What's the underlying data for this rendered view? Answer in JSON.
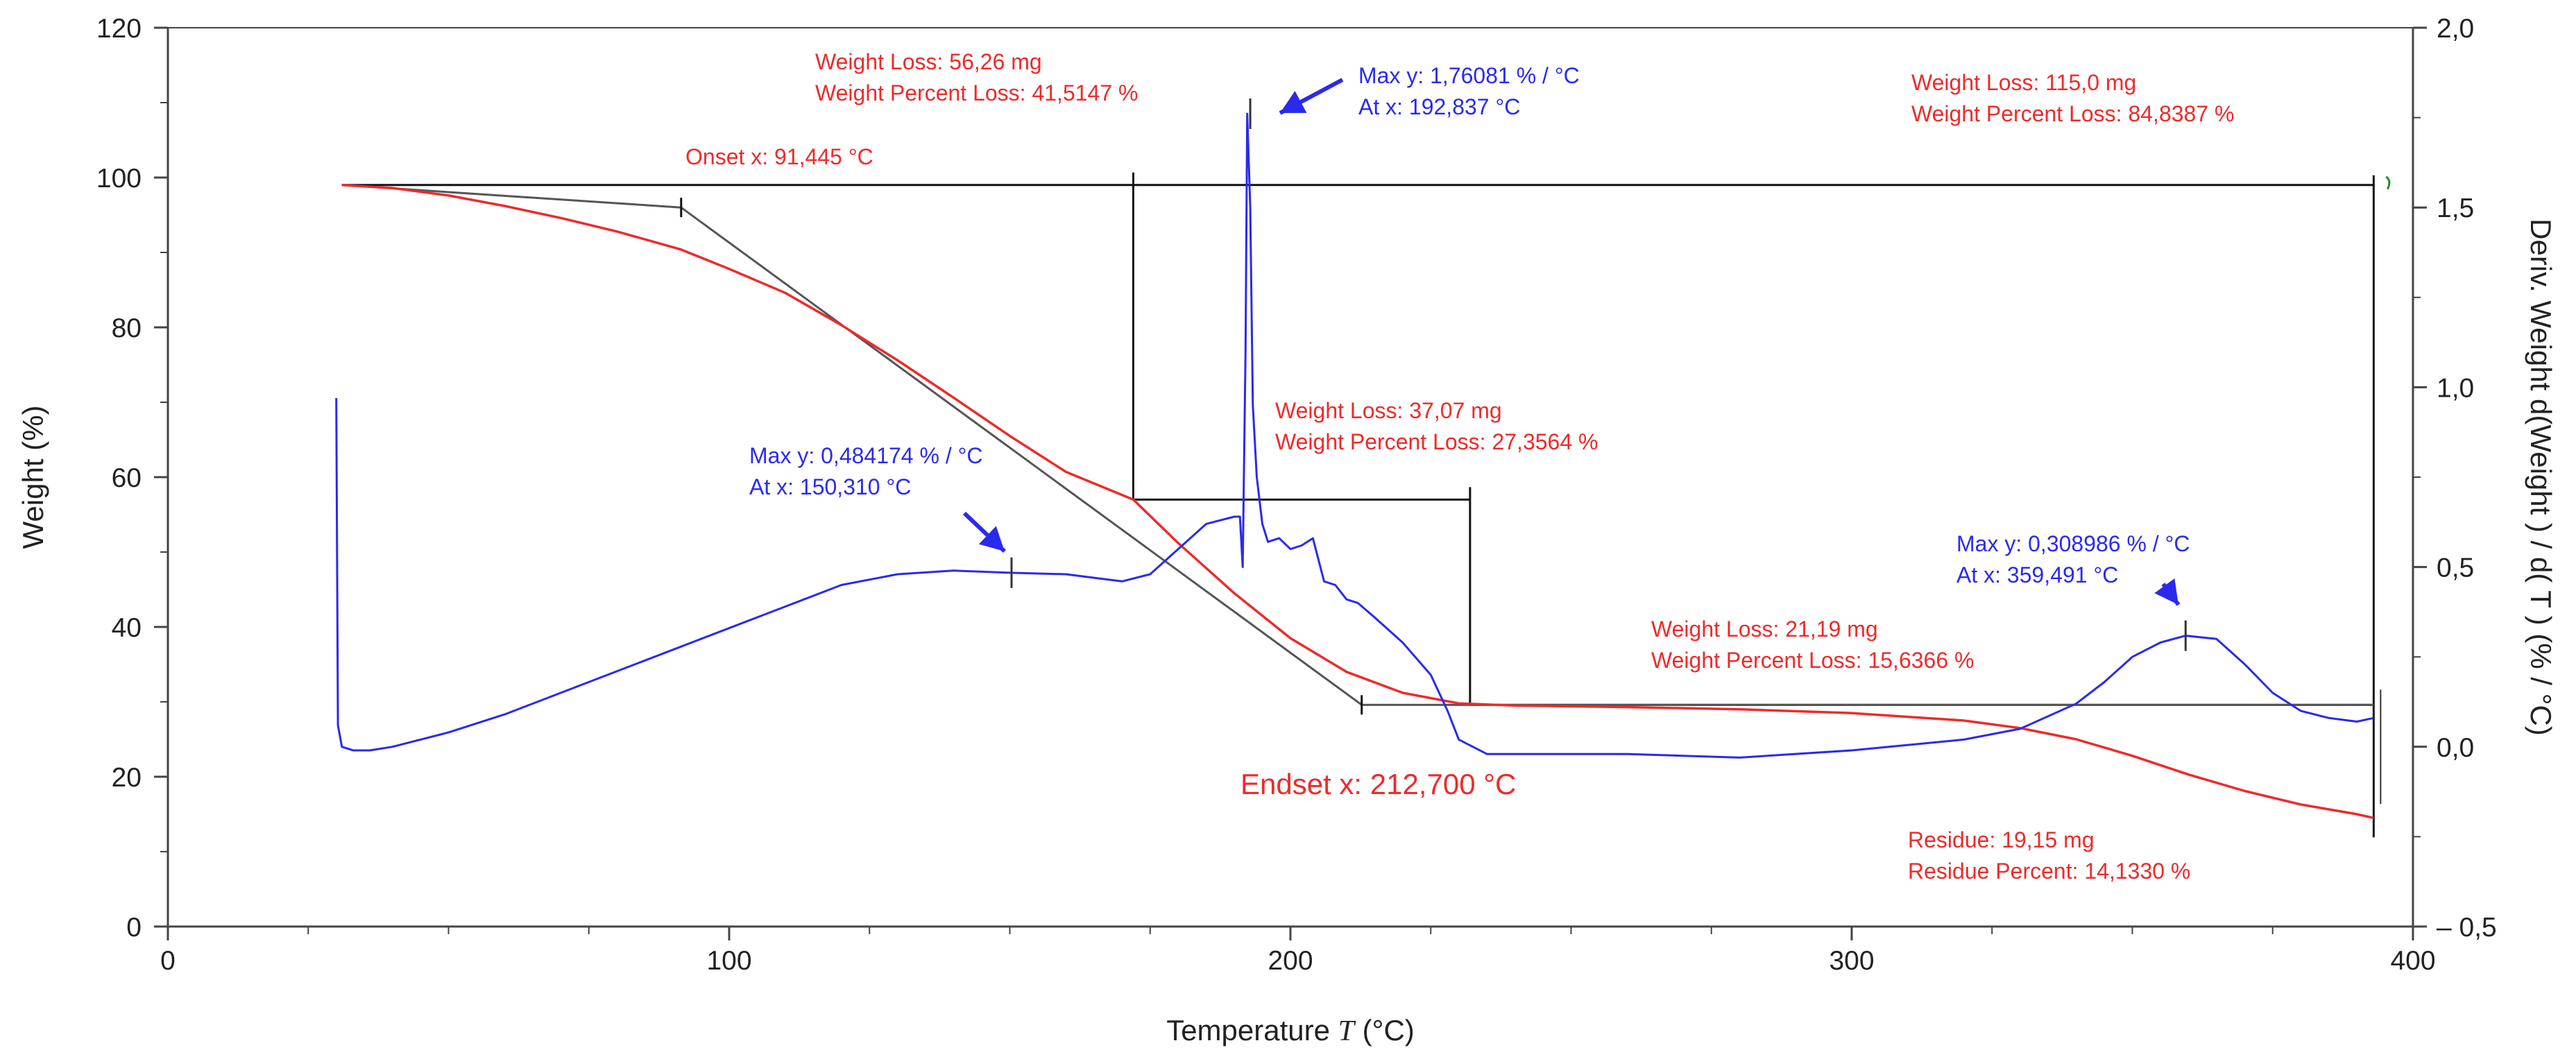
{
  "chart_data": {
    "type": "line",
    "xlabel": "Temperature",
    "xlabel_symbol": "T",
    "xlabel_unit": "(°C)",
    "ylabel": "Weight (%)",
    "y2label": "Deriv. Weight d(Weight ) / d( T )  (% / °C)",
    "xlim": [
      0,
      400
    ],
    "ylim": [
      0,
      120
    ],
    "y2lim": [
      -0.5,
      2.0
    ],
    "x_ticks": [
      0,
      100,
      200,
      300,
      400
    ],
    "y_ticks": [
      0,
      20,
      40,
      60,
      80,
      100,
      120
    ],
    "y2_ticks": [
      -0.5,
      0.0,
      0.5,
      1.0,
      1.5,
      2.0
    ],
    "x_tick_labels": [
      "0",
      "100",
      "200",
      "300",
      "400"
    ],
    "y_tick_labels": [
      "0",
      "20",
      "40",
      "60",
      "80",
      "100",
      "120"
    ],
    "y2_tick_labels": [
      "– 0,5",
      "0,0",
      "0,5",
      "1,0",
      "1,5",
      "2,0"
    ],
    "grid": false,
    "colors": {
      "weight": "#ee2a2a",
      "deriv": "#2a2aee",
      "construction": "#111111",
      "tangent": "#555555"
    },
    "series": [
      {
        "name": "Weight",
        "axis": "left",
        "x": [
          31,
          40,
          50,
          60,
          70,
          80,
          91.4,
          100,
          110,
          120,
          130,
          140,
          150,
          160,
          172,
          180,
          190,
          200,
          210,
          220,
          230,
          240,
          260,
          280,
          300,
          320,
          330,
          340,
          350,
          360,
          370,
          380,
          390,
          393
        ],
        "y": [
          99,
          98.6,
          97.6,
          96.2,
          94.6,
          92.8,
          90.4,
          87.8,
          84.6,
          80.3,
          75.6,
          70.6,
          65.5,
          60.7,
          57,
          51.2,
          44.5,
          38.5,
          34,
          31.2,
          29.8,
          29.5,
          29.3,
          29,
          28.5,
          27.5,
          26.5,
          25,
          22.8,
          20.3,
          18.1,
          16.3,
          15,
          14.5
        ]
      },
      {
        "name": "Deriv. Weight",
        "axis": "right",
        "x": [
          30,
          30.3,
          31,
          33,
          36,
          40,
          50,
          60,
          70,
          80,
          90,
          100,
          110,
          120,
          130,
          140,
          150,
          160,
          170,
          175,
          180,
          185,
          190,
          191,
          191.5,
          192,
          192.3,
          192.837,
          193.3,
          194,
          195,
          196,
          198,
          200,
          202,
          204,
          206,
          208,
          210,
          212,
          215,
          220,
          225,
          228,
          230,
          235,
          240,
          260,
          280,
          300,
          320,
          330,
          340,
          345,
          350,
          355,
          359.491,
          365,
          370,
          375,
          380,
          385,
          390,
          393
        ],
        "y": [
          0.97,
          0.06,
          0.0,
          -0.01,
          -0.01,
          0.0,
          0.04,
          0.09,
          0.15,
          0.21,
          0.27,
          0.33,
          0.39,
          0.45,
          0.48,
          0.49,
          0.484,
          0.48,
          0.46,
          0.48,
          0.55,
          0.62,
          0.64,
          0.64,
          0.5,
          1.1,
          1.76081,
          1.5,
          0.95,
          0.75,
          0.62,
          0.57,
          0.58,
          0.55,
          0.56,
          0.58,
          0.46,
          0.45,
          0.41,
          0.4,
          0.36,
          0.29,
          0.2,
          0.1,
          0.02,
          -0.02,
          -0.02,
          -0.02,
          -0.03,
          -0.01,
          0.02,
          0.05,
          0.12,
          0.18,
          0.25,
          0.29,
          0.308986,
          0.3,
          0.23,
          0.15,
          0.1,
          0.08,
          0.07,
          0.08
        ]
      }
    ],
    "construction": {
      "baseline_y": 99,
      "baseline_x": [
        31,
        393
      ],
      "step_levels": [
        57,
        29.6
      ],
      "step_x": [
        172,
        232,
        393
      ],
      "residue": 14.5,
      "onset_tangent": {
        "x": [
          31,
          91.445
        ],
        "y": [
          99,
          96
        ]
      },
      "steep_tangent": {
        "x": [
          91.445,
          212.7
        ],
        "y": [
          96,
          29.6
        ]
      },
      "endset_line": {
        "x": [
          212.7,
          393
        ],
        "y": [
          29.6,
          29.6
        ]
      }
    },
    "annotations": {
      "onset": "Onset x: 91,445 °C",
      "endset": "Endset x: 212,700 °C",
      "loss1": [
        "Weight Loss: 56,26 mg",
        "Weight Percent Loss: 41,5147 %"
      ],
      "loss2": [
        "Weight Loss: 37,07 mg",
        "Weight Percent Loss: 27,3564 %"
      ],
      "loss3": [
        "Weight Loss: 21,19 mg",
        "Weight Percent Loss: 15,6366 %"
      ],
      "total": [
        "Weight Loss: 115,0 mg",
        "Weight Percent Loss: 84,8387 %"
      ],
      "residue": [
        "Residue: 19,15 mg",
        "Residue Percent: 14,1330 %"
      ],
      "peak1": [
        "Max y: 0,484174 % / °C",
        "At x: 150,310 °C"
      ],
      "peak2": [
        "Max y: 1,76081 % / °C",
        "At x: 192,837 °C"
      ],
      "peak3": [
        "Max y: 0,308986 % / °C",
        "At x: 359,491 °C"
      ]
    },
    "peaks": [
      {
        "x": 150.31,
        "y": 0.484174
      },
      {
        "x": 192.837,
        "y": 1.76081
      },
      {
        "x": 359.491,
        "y": 0.308986
      }
    ]
  }
}
